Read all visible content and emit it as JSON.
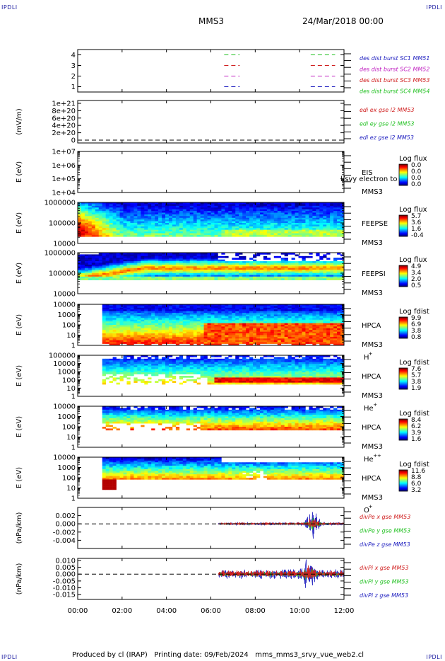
{
  "header": {
    "corner_label": "IPDLI",
    "mission": "MMS3",
    "datetime": "24/Mar/2018 00:00"
  },
  "footer": {
    "text": "Produced by cl (IRAP)   Printing date: 09/Feb/2024   mms_mms3_srvy_vue_web2.cl"
  },
  "chart_data": {
    "type": "stacked-time-series",
    "x_axis": {
      "range_hours": [
        0,
        12
      ],
      "tick_labels": [
        "00:00",
        "02:00",
        "04:00",
        "06:00",
        "08:00",
        "10:00",
        "12:00"
      ],
      "tick_hours": [
        0,
        2,
        4,
        6,
        8,
        10,
        12
      ]
    },
    "panels": [
      {
        "id": "burst",
        "kind": "burst",
        "ylabel": "",
        "yticks": [
          "4",
          "3",
          "2",
          "1"
        ],
        "legend": [
          {
            "text": "des dist burst SC1 MM51",
            "color": "#2020c0"
          },
          {
            "text": "des dist burst SC2 MM52",
            "color": "#c020c0"
          },
          {
            "text": "des dist burst SC3 MM53",
            "color": "#d02020"
          },
          {
            "text": "des dist burst SC4 MM54",
            "color": "#20c020"
          }
        ],
        "rows": [
          {
            "level": 4,
            "color": "#20c020",
            "segments": [
              [
                6.6,
                7.3
              ],
              [
                10.5,
                11.6
              ]
            ]
          },
          {
            "level": 3,
            "color": "#d02020",
            "segments": [
              [
                6.6,
                7.3
              ],
              [
                10.5,
                11.6
              ]
            ]
          },
          {
            "level": 2,
            "color": "#c020c0",
            "segments": [
              [
                6.6,
                7.3
              ],
              [
                10.5,
                11.6
              ]
            ]
          },
          {
            "level": 1,
            "color": "#2020c0",
            "segments": [
              [
                6.6,
                7.3
              ],
              [
                10.5,
                11.6
              ]
            ]
          }
        ]
      },
      {
        "id": "edi",
        "kind": "empty",
        "ylabel": "(mV/m)",
        "yticks": [
          "1e+21",
          "8e+20",
          "6e+20",
          "4e+20",
          "2e+20",
          "0"
        ],
        "zero_line": true,
        "legend": [
          {
            "text": "edi ex gse l2 MM53",
            "color": "#d02020"
          },
          {
            "text": "edi ey gse l2 MM53",
            "color": "#20c020"
          },
          {
            "text": "edi ez gse l2 MM53",
            "color": "#2020c0"
          }
        ]
      },
      {
        "id": "eis",
        "kind": "empty",
        "ylabel": "E (eV)",
        "yticks": [
          "1e+07",
          "1e+06",
          "1e+05",
          "1e+04"
        ],
        "side_label": [
          "EIS",
          "MMS3"
        ],
        "overlay_text": "l/svy electron to",
        "colorbar": {
          "title": "Log flux",
          "labels": [
            "0.0",
            "0.0",
            "0.0",
            "0.0"
          ]
        }
      },
      {
        "id": "feeps-e",
        "kind": "spectrogram",
        "profile": "feeps_e",
        "ylabel": "E (eV)",
        "yticks": [
          "1000000",
          "100000",
          "10000"
        ],
        "side_label": [
          "FEEPSE",
          "MMS3"
        ],
        "colorbar": {
          "title": "Log flux",
          "labels": [
            "5.7",
            "3.6",
            "1.6",
            "-0.4"
          ]
        }
      },
      {
        "id": "feeps-i",
        "kind": "spectrogram",
        "profile": "feeps_i",
        "ylabel": "E (eV)",
        "yticks": [
          "1000000",
          "100000",
          "10000"
        ],
        "side_label": [
          "FEEPSI",
          "MMS3"
        ],
        "colorbar": {
          "title": "Log flux",
          "labels": [
            "4.9",
            "3.4",
            "2.0",
            "0.5"
          ]
        }
      },
      {
        "id": "hpca-h",
        "kind": "spectrogram",
        "profile": "hpca_h",
        "ylabel": "E (eV)",
        "yticks": [
          "10000",
          "1000",
          "100",
          "10",
          "1"
        ],
        "side_label": [
          "HPCA",
          "MMS3",
          "H",
          "+"
        ],
        "colorbar": {
          "title": "Log fdist",
          "labels": [
            "9.9",
            "6.9",
            "3.8",
            "0.8"
          ]
        }
      },
      {
        "id": "hpca-he",
        "kind": "spectrogram",
        "profile": "hpca_he",
        "ylabel": "E (eV)",
        "yticks": [
          "100000",
          "10000",
          "1000",
          "100",
          "10",
          "1"
        ],
        "side_label": [
          "HPCA",
          "MMS3",
          "He",
          "+"
        ],
        "colorbar": {
          "title": "Log fdist",
          "labels": [
            "7.6",
            "5.7",
            "3.8",
            "1.9"
          ]
        }
      },
      {
        "id": "hpca-hepp",
        "kind": "spectrogram",
        "profile": "hpca_hepp",
        "ylabel": "E (eV)",
        "yticks": [
          "10000",
          "1000",
          "100",
          "10",
          "1"
        ],
        "side_label": [
          "HPCA",
          "MMS3",
          "He",
          "++"
        ],
        "colorbar": {
          "title": "Log fdist",
          "labels": [
            "8.4",
            "6.2",
            "3.9",
            "1.6"
          ]
        }
      },
      {
        "id": "hpca-o",
        "kind": "spectrogram",
        "profile": "hpca_o",
        "ylabel": "E (eV)",
        "yticks": [
          "10000",
          "1000",
          "100",
          "10",
          "1"
        ],
        "side_label": [
          "HPCA",
          "MMS3",
          "O",
          "+"
        ],
        "colorbar": {
          "title": "Log fdist",
          "labels": [
            "11.6",
            "8.8",
            "6.0",
            "3.2"
          ]
        }
      },
      {
        "id": "divpe",
        "kind": "line",
        "ylabel": "(nPa/km)",
        "yticks": [
          "0.002",
          "0.000",
          "-0.002",
          "-0.004"
        ],
        "ytick_values": [
          0.002,
          0.0,
          -0.002,
          -0.004
        ],
        "ylim": [
          -0.006,
          0.004
        ],
        "zero_line": true,
        "data_start_hour": 6.35,
        "base_amplitude": 0.0003,
        "spike_hour": 10.6,
        "spike_amplitude": 0.0035,
        "series": [
          {
            "name": "divPe x gse MM53",
            "color": "#d02020"
          },
          {
            "name": "divPe y gse MM53",
            "color": "#20c020"
          },
          {
            "name": "divPe z gse MM53",
            "color": "#2020c0"
          }
        ]
      },
      {
        "id": "divpi",
        "kind": "line",
        "ylabel": "(nPa/km)",
        "yticks": [
          "0.010",
          "0.005",
          "0.000",
          "-0.005",
          "-0.010",
          "-0.015"
        ],
        "ytick_values": [
          0.01,
          0.005,
          0.0,
          -0.005,
          -0.01,
          -0.015
        ],
        "ylim": [
          -0.0185,
          0.0115
        ],
        "zero_line": true,
        "data_start_hour": 6.35,
        "base_amplitude": 0.0035,
        "spike_hour": 10.4,
        "spike_amplitude": 0.009,
        "series": [
          {
            "name": "divPi x gse MM53",
            "color": "#d02020"
          },
          {
            "name": "divPi y gse MM53",
            "color": "#20c020"
          },
          {
            "name": "divPi z gse MM53",
            "color": "#2020c0"
          }
        ]
      }
    ]
  }
}
